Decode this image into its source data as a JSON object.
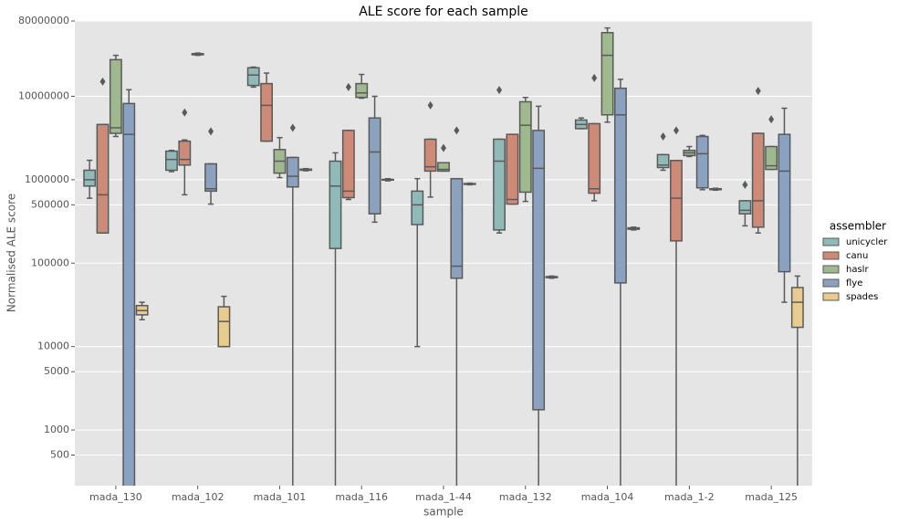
{
  "chart_data": {
    "type": "box",
    "title": "ALE score for each sample",
    "x_label": "sample",
    "y_label": "Normalised ALE score",
    "log_scale": true,
    "grid": true,
    "legend_title": "assembler",
    "legend_position": "right",
    "categories": [
      "mada_130",
      "mada_102",
      "mada_101",
      "mada_116",
      "mada_1-44",
      "mada_132",
      "mada_104",
      "mada_1-2",
      "mada_125"
    ],
    "ylim": [
      215,
      80000000
    ],
    "yticks": [
      80000000,
      10000000,
      1000000,
      500000,
      100000,
      10000,
      5000,
      1000,
      500
    ],
    "series": [
      {
        "name": "unicycler",
        "color": "#90bab7",
        "whislo": [
          600000,
          1250000,
          12900000,
          100,
          10000,
          230000,
          4100000,
          1300000,
          280000
        ],
        "q1": [
          840000,
          1300000,
          13500000,
          150000,
          290000,
          250000,
          4100000,
          1400000,
          390000
        ],
        "median": [
          1000000,
          1750000,
          18000000,
          840000,
          500000,
          1670000,
          4600000,
          1500000,
          430000
        ],
        "q3": [
          1300000,
          2200000,
          22000000,
          1670000,
          730000,
          3060000,
          5200000,
          2000000,
          560000
        ],
        "whishi": [
          1710000,
          2250000,
          22400000,
          2100000,
          1030000,
          3060000,
          5500000,
          2000000,
          560000
        ],
        "fliers": [
          [],
          [],
          [],
          [],
          [],
          [
            11900000
          ],
          [],
          [
            3300000
          ],
          [
            870000
          ]
        ]
      },
      {
        "name": "canu",
        "color": "#cc8a77",
        "whislo": [
          230000,
          660000,
          2900000,
          580000,
          620000,
          510000,
          560000,
          100,
          230000
        ],
        "q1": [
          230000,
          1500000,
          2900000,
          610000,
          1270000,
          510000,
          690000,
          185000,
          270000
        ],
        "median": [
          660000,
          1750000,
          7800000,
          730000,
          1430000,
          580000,
          780000,
          600000,
          560000
        ],
        "q3": [
          4600000,
          2900000,
          14200000,
          3900000,
          3060000,
          3500000,
          4700000,
          1700000,
          3600000
        ],
        "whishi": [
          4600000,
          3000000,
          19000000,
          3900000,
          3060000,
          3500000,
          4700000,
          1700000,
          3600000
        ],
        "fliers": [
          [
            15000000
          ],
          [
            6400000
          ],
          [],
          [
            12900000
          ],
          [
            7800000
          ],
          [],
          [
            16600000
          ],
          [
            3900000
          ],
          [
            11600000
          ]
        ]
      },
      {
        "name": "haslr",
        "color": "#9fb98e",
        "whislo": [
          3300000,
          31000000,
          1060000,
          9500000,
          1270000,
          550000,
          4900000,
          1900000,
          1330000
        ],
        "q1": [
          3600000,
          31500000,
          1200000,
          9700000,
          1270000,
          710000,
          6000000,
          1950000,
          1330000
        ],
        "median": [
          4200000,
          32000000,
          1670000,
          11000000,
          1330000,
          4500000,
          31000000,
          2100000,
          1470000
        ],
        "q3": [
          27500000,
          32500000,
          2300000,
          14200000,
          1600000,
          8600000,
          58000000,
          2250000,
          2500000
        ],
        "whishi": [
          31000000,
          33000000,
          3200000,
          18300000,
          1600000,
          9700000,
          66000000,
          2500000,
          2500000
        ],
        "fliers": [
          [],
          [],
          [],
          [],
          [
            2400000
          ],
          [],
          [],
          [],
          [
            5300000
          ]
        ]
      },
      {
        "name": "flye",
        "color": "#8aa2c0",
        "whislo": [
          100,
          510000,
          100,
          310000,
          100,
          100,
          100,
          760000,
          34000
        ],
        "q1": [
          100,
          730000,
          820000,
          390000,
          66000,
          1750,
          58000,
          800000,
          79000
        ],
        "median": [
          3500000,
          780000,
          1100000,
          2150000,
          92000,
          1370000,
          6000000,
          2050000,
          1270000
        ],
        "q3": [
          8200000,
          1550000,
          1850000,
          5500000,
          1030000,
          3900000,
          12500000,
          3300000,
          3500000
        ],
        "whishi": [
          12000000,
          1550000,
          1850000,
          10000000,
          1030000,
          7600000,
          16000000,
          3400000,
          7200000
        ],
        "fliers": [
          [],
          [
            3800000
          ],
          [
            4200000
          ],
          [],
          [
            3900000
          ],
          [],
          [],
          [],
          []
        ]
      },
      {
        "name": "spades",
        "color": "#e8cb8e",
        "whislo": [
          21000,
          10000,
          1280000,
          970000,
          870000,
          66000,
          250000,
          750000,
          100
        ],
        "q1": [
          24000,
          10000,
          1300000,
          990000,
          880000,
          67000,
          255000,
          760000,
          17000
        ],
        "median": [
          27000,
          20000,
          1320000,
          1000000,
          890000,
          68000,
          260000,
          770000,
          34000
        ],
        "q3": [
          31000,
          30000,
          1340000,
          1010000,
          900000,
          69000,
          265000,
          780000,
          51000
        ],
        "whishi": [
          34000,
          40000,
          1360000,
          1030000,
          910000,
          70000,
          270000,
          790000,
          70000
        ],
        "fliers": [
          [],
          [],
          [],
          [],
          [],
          [],
          [],
          [],
          []
        ]
      }
    ]
  }
}
